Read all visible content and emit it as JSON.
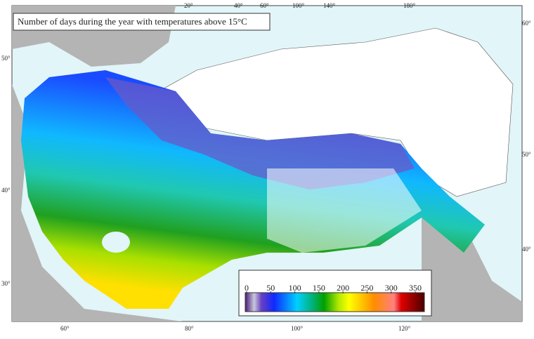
{
  "title": "Number of days during the year with temperatures above 15°C",
  "graticule": {
    "top": [
      "20°",
      "40°",
      "60°",
      "100°",
      "140°",
      "180°"
    ],
    "bottom": [
      "60°",
      "80°",
      "100°",
      "120°"
    ],
    "left": [
      "50°",
      "40°",
      "30°"
    ],
    "right": [
      "60°",
      "50°",
      "40°"
    ]
  },
  "legend": {
    "range": [
      0,
      350
    ],
    "ticks": [
      0,
      50,
      100,
      150,
      200,
      250,
      300,
      350
    ]
  }
}
